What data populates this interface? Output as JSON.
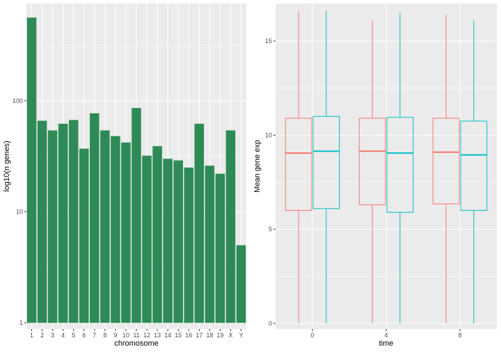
{
  "chart_data": [
    {
      "type": "bar",
      "title": "",
      "xlabel": "chromosome",
      "ylabel": "log10(n genes)",
      "y_scale": "log10",
      "ylim": [
        1,
        700
      ],
      "y_ticks": [
        1,
        10,
        100
      ],
      "y_tick_labels": [
        "1",
        "10",
        "100"
      ],
      "grid": true,
      "bar_color": "#2E8B57",
      "panel_background": "#EBEBEB",
      "categories": [
        "1",
        "2",
        "3",
        "4",
        "5",
        "6",
        "7",
        "8",
        "9",
        "10",
        "11",
        "12",
        "13",
        "14",
        "15",
        "16",
        "17",
        "18",
        "19",
        "X",
        "Y"
      ],
      "values": [
        560,
        66,
        54,
        62,
        67,
        37,
        77,
        54,
        48,
        42,
        86,
        32,
        39,
        30,
        29,
        25,
        62,
        26,
        22,
        54,
        5
      ]
    },
    {
      "type": "box",
      "title": "",
      "xlabel": "time",
      "ylabel": "Mean gene exp",
      "ylim": [
        -0.3,
        17.0
      ],
      "y_ticks": [
        0,
        5,
        10,
        15
      ],
      "y_tick_labels": [
        "0",
        "5",
        "10",
        "15"
      ],
      "grid": true,
      "panel_background": "#EBEBEB",
      "categories": [
        "0",
        "4",
        "8"
      ],
      "series": [
        {
          "color": "#F8766D",
          "boxes": [
            {
              "min": 0.0,
              "q1": 6.0,
              "median": 9.05,
              "q3": 10.9,
              "max": 16.6
            },
            {
              "min": 0.0,
              "q1": 6.3,
              "median": 9.15,
              "q3": 10.9,
              "max": 16.1
            },
            {
              "min": 0.0,
              "q1": 6.35,
              "median": 9.1,
              "q3": 10.9,
              "max": 16.4
            }
          ]
        },
        {
          "color": "#00BFC4",
          "boxes": [
            {
              "min": 0.0,
              "q1": 6.1,
              "median": 9.15,
              "q3": 11.0,
              "max": 16.6
            },
            {
              "min": 0.0,
              "q1": 5.9,
              "median": 9.05,
              "q3": 10.95,
              "max": 16.5
            },
            {
              "min": 0.0,
              "q1": 6.0,
              "median": 8.95,
              "q3": 10.75,
              "max": 16.1
            }
          ]
        }
      ]
    }
  ]
}
